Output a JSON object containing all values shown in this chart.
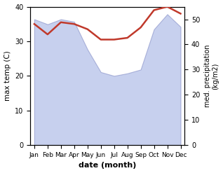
{
  "months": [
    "Jan",
    "Feb",
    "Mar",
    "Apr",
    "May",
    "Jun",
    "Jul",
    "Aug",
    "Sep",
    "Oct",
    "Nov",
    "Dec"
  ],
  "max_temp": [
    35.0,
    32.0,
    35.5,
    35.0,
    33.5,
    30.5,
    30.5,
    31.0,
    34.0,
    39.0,
    40.0,
    38.0
  ],
  "precipitation": [
    50.0,
    48.0,
    50.0,
    49.0,
    38.0,
    29.0,
    27.5,
    28.5,
    30.0,
    46.0,
    52.0,
    47.0
  ],
  "temp_color": "#c0392b",
  "precip_fill_color": "#b0bce8",
  "precip_edge_color": "#9099cc",
  "ylabel_left": "max temp (C)",
  "ylabel_right": "med. precipitation\n(kg/m2)",
  "xlabel": "date (month)",
  "ylim_left": [
    0,
    40
  ],
  "ylim_right": [
    0,
    55
  ],
  "yticks_left": [
    0,
    10,
    20,
    30,
    40
  ],
  "yticks_right": [
    0,
    10,
    20,
    30,
    40,
    50
  ]
}
